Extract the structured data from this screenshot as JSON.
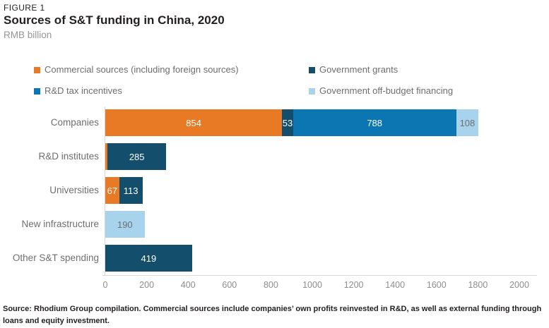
{
  "header": {
    "figure_label": "FIGURE 1",
    "title": "Sources of S&T funding in China, 2020",
    "unit": "RMB billion"
  },
  "source_note": "Source: Rhodium Group compilation. Commercial sources include companies’ own profits reinvested in R&D, as well as external funding through loans and equity investment.",
  "chart_data": {
    "type": "bar",
    "orientation": "horizontal-stacked",
    "title": "Sources of S&T funding in China, 2020",
    "ylabel": "",
    "xlabel": "RMB billion",
    "xlim": [
      0,
      2000
    ],
    "x_ticks": [
      0,
      200,
      400,
      600,
      800,
      1000,
      1200,
      1400,
      1600,
      1800,
      2000
    ],
    "grid": "zero-line-only",
    "legend_position": "top-two-columns",
    "series": [
      {
        "key": "commercial",
        "name": "Commercial sources (including foreign sources)",
        "color": "#E87A26",
        "label_color": "#FFFFFF"
      },
      {
        "key": "grants",
        "name": "Government grants",
        "color": "#134F6D",
        "label_color": "#FFFFFF"
      },
      {
        "key": "tax",
        "name": "R&D tax incentives",
        "color": "#0C76B2",
        "label_color": "#FFFFFF"
      },
      {
        "key": "offbudget",
        "name": "Government off-budget financing",
        "color": "#A8D3ED",
        "label_color": "#6D6E71"
      }
    ],
    "categories": [
      "Companies",
      "R&D institutes",
      "Universities",
      "New infrastructure",
      "Other S&T spending"
    ],
    "rows": [
      {
        "category": "Companies",
        "segments": [
          {
            "series": "commercial",
            "value": 854,
            "label": "854"
          },
          {
            "series": "grants",
            "value": 53,
            "label": "53"
          },
          {
            "series": "tax",
            "value": 788,
            "label": "788"
          },
          {
            "series": "offbudget",
            "value": 108,
            "label": "108"
          }
        ]
      },
      {
        "category": "R&D institutes",
        "segments": [
          {
            "series": "commercial",
            "value": 10,
            "label": ""
          },
          {
            "series": "grants",
            "value": 285,
            "label": "285"
          }
        ]
      },
      {
        "category": "Universities",
        "segments": [
          {
            "series": "commercial",
            "value": 67,
            "label": "67"
          },
          {
            "series": "grants",
            "value": 113,
            "label": "113"
          }
        ]
      },
      {
        "category": "New infrastructure",
        "segments": [
          {
            "series": "offbudget",
            "value": 190,
            "label": "190"
          }
        ]
      },
      {
        "category": "Other S&T spending",
        "segments": [
          {
            "series": "grants",
            "value": 419,
            "label": "419"
          }
        ]
      }
    ]
  }
}
